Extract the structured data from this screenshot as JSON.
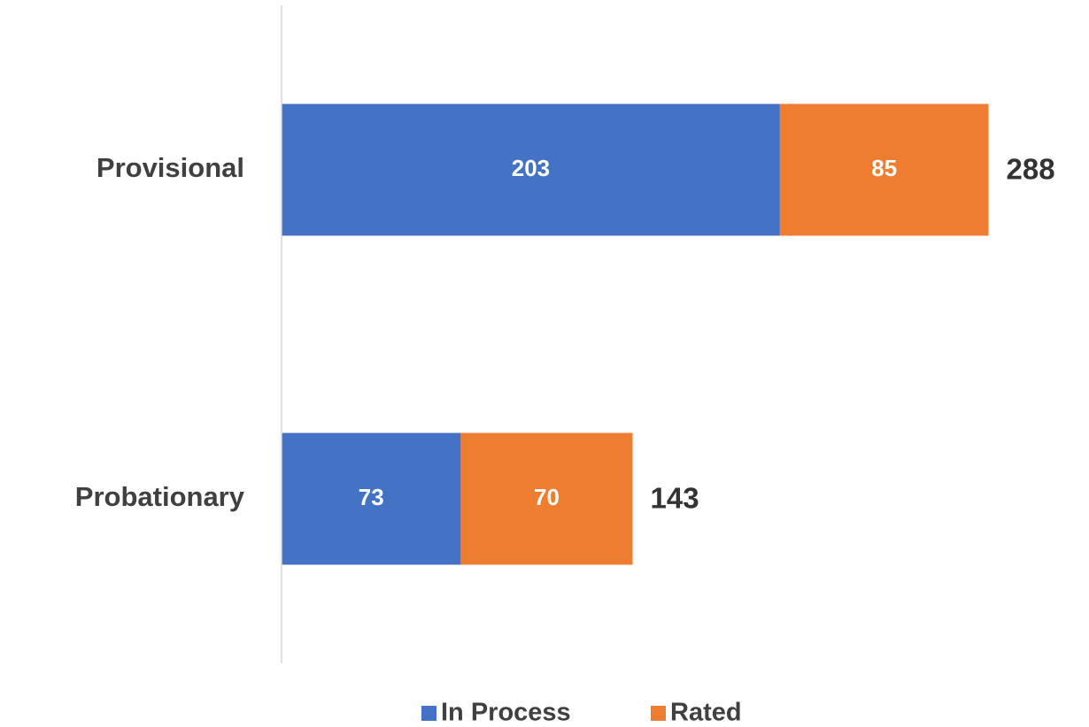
{
  "chart_data": {
    "type": "stacked-bar-horizontal",
    "categories": [
      "Provisional",
      "Probationary"
    ],
    "series": [
      {
        "name": "In Process",
        "color": "#4472c4",
        "values": [
          203,
          73
        ]
      },
      {
        "name": "Rated",
        "color": "#ed7d31",
        "values": [
          85,
          70
        ]
      }
    ],
    "totals": [
      288,
      143
    ],
    "xlim": [
      0,
      330
    ],
    "legend": "bottom"
  }
}
